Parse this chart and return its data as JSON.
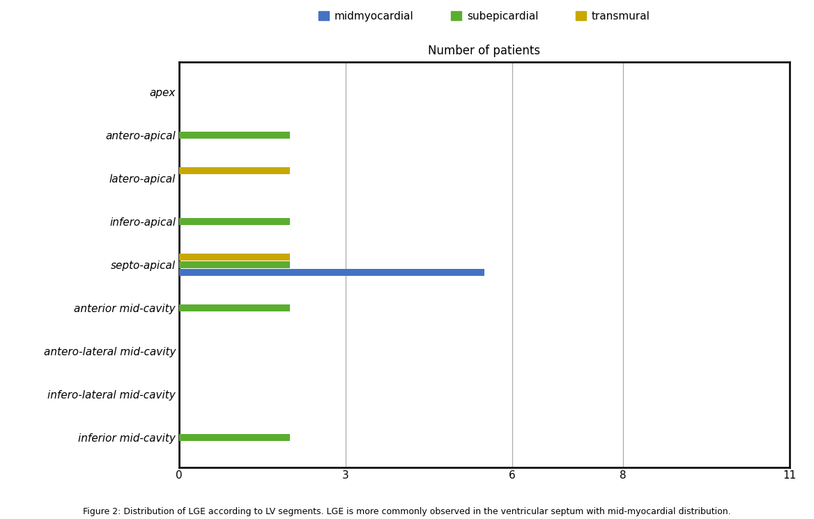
{
  "categories": [
    "apex",
    "antero-apical",
    "latero-apical",
    "infero-apical",
    "septo-apical",
    "anterior mid-cavity",
    "antero-lateral mid-cavity",
    "infero-lateral mid-cavity",
    "inferior mid-cavity"
  ],
  "series": {
    "midmyocardial": {
      "color": "#4472C4",
      "values": [
        0,
        0,
        0,
        0,
        5.5,
        0,
        0,
        0,
        0
      ]
    },
    "subepicardial": {
      "color": "#5BAD2F",
      "values": [
        0,
        2,
        0,
        2,
        2,
        2,
        0,
        0,
        2
      ]
    },
    "transmural": {
      "color": "#C8A800",
      "values": [
        0,
        0,
        2,
        0,
        2,
        0,
        0,
        0,
        0
      ]
    }
  },
  "xlim": [
    0,
    11
  ],
  "xticks": [
    0,
    3,
    6,
    8,
    11
  ],
  "title": "Number of patients",
  "legend_labels": [
    "midmyocardial",
    "subepicardial",
    "transmural"
  ],
  "legend_colors": [
    "#4472C4",
    "#5BAD2F",
    "#C8A800"
  ],
  "bar_height": 0.18,
  "figure_caption": "Figure 2: Distribution of LGE according to LV segments. LGE is more commonly observed in the ventricular septum with mid-myocardial distribution.",
  "background_color": "#ffffff",
  "grid_color": "#aaaaaa",
  "spine_color": "#111111",
  "title_fontsize": 12,
  "tick_fontsize": 11,
  "legend_fontsize": 11,
  "caption_fontsize": 9
}
